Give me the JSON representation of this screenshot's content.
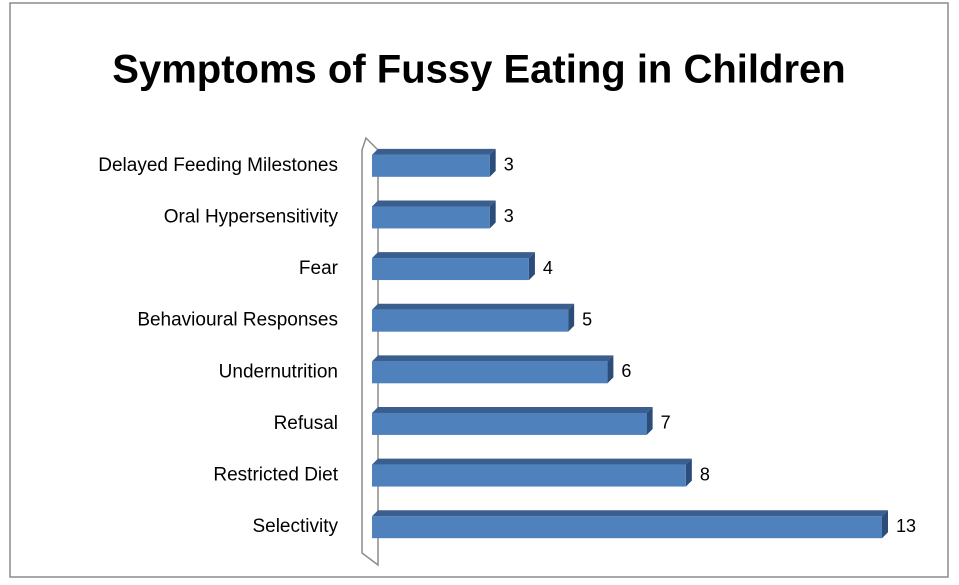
{
  "chart_data": {
    "type": "bar3d-horizontal",
    "title": "Symptoms of Fussy Eating in Children",
    "categories": [
      "Delayed Feeding Milestones",
      "Oral Hypersensitivity",
      "Fear",
      "Behavioural Responses",
      "Undernutrition",
      "Refusal",
      "Restricted Diet",
      "Selectivity"
    ],
    "values": [
      3,
      3,
      4,
      5,
      6,
      7,
      8,
      13
    ],
    "color": "#4f81bd"
  }
}
